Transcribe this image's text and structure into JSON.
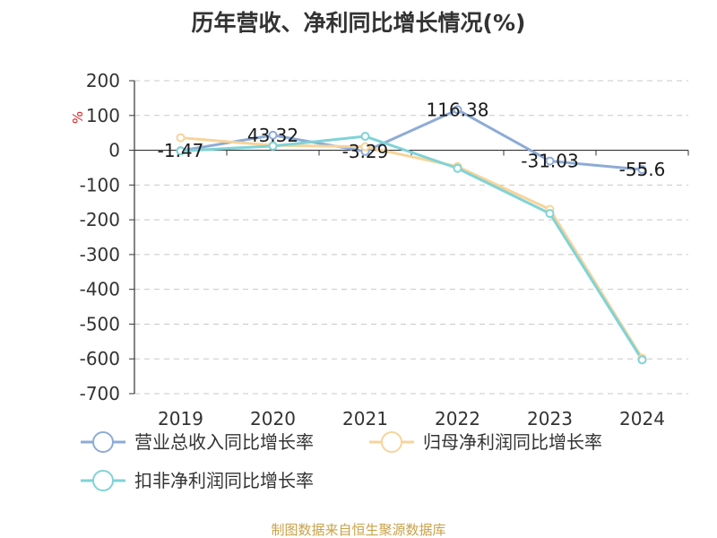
{
  "chart_data": {
    "type": "line",
    "title": "历年营收、净利同比增长情况(%)",
    "unit_label": "%",
    "categories": [
      "2019",
      "2020",
      "2021",
      "2022",
      "2023",
      "2024"
    ],
    "ylim": [
      -700,
      200
    ],
    "yticks": [
      200,
      100,
      0,
      -100,
      -200,
      -300,
      -400,
      -500,
      -600,
      -700
    ],
    "grid": true,
    "legend_position": "bottom-left",
    "series": [
      {
        "name": "营业总收入同比增长率",
        "color": "#8eabd6",
        "values": [
          -1.47,
          43.32,
          -3.29,
          116.38,
          -31.03,
          -55.6
        ],
        "labels": [
          "-1.47",
          "43.32",
          "-3.29",
          "116.38",
          "-31.03",
          "-55.6"
        ]
      },
      {
        "name": "归母净利润同比增长率",
        "color": "#f7d49a",
        "values": [
          36,
          14,
          10,
          -47,
          -170,
          -598
        ]
      },
      {
        "name": "扣非净利润同比增长率",
        "color": "#7fd3d6",
        "values": [
          -2,
          12,
          40,
          -52,
          -182,
          -603
        ]
      }
    ],
    "source": "制图数据来自恒生聚源数据库"
  }
}
